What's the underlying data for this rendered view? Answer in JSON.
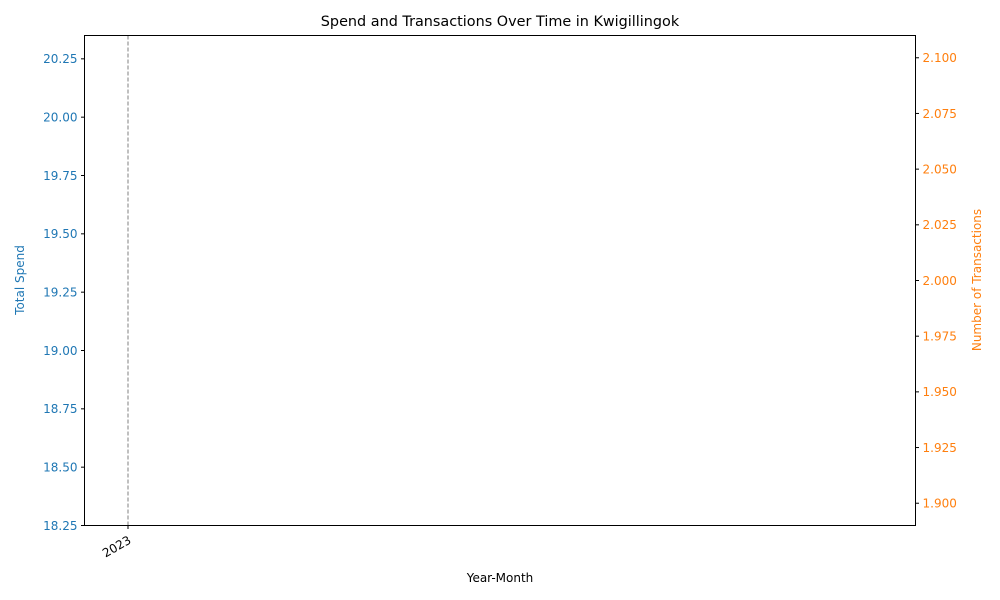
{
  "chart_data": {
    "type": "line",
    "title": "Spend and Transactions Over Time in Kwigillingok",
    "xlabel": "Year-Month",
    "x_ticks": [
      "2023"
    ],
    "grid": false,
    "legend": "none",
    "markers": [
      {
        "x": "2023",
        "style": "dashed",
        "color": "#808080"
      }
    ],
    "y_left": {
      "label": "Total Spend",
      "color": "#1f77b4",
      "ylim": [
        18.25,
        20.35
      ],
      "ticks": [
        "18.25",
        "18.50",
        "18.75",
        "19.00",
        "19.25",
        "19.50",
        "19.75",
        "20.00",
        "20.25"
      ]
    },
    "y_right": {
      "label": "Number of Transactions",
      "color": "#ff7f0e",
      "ylim": [
        1.89,
        2.11
      ],
      "ticks": [
        "1.900",
        "1.925",
        "1.950",
        "1.975",
        "2.000",
        "2.025",
        "2.050",
        "2.075",
        "2.100"
      ]
    },
    "series": []
  }
}
